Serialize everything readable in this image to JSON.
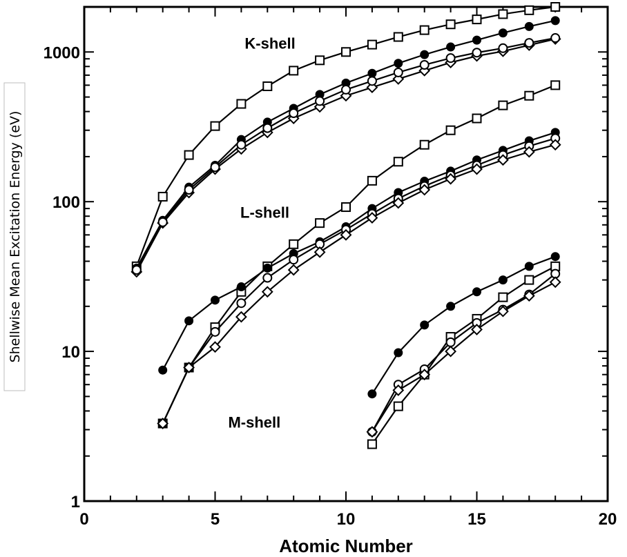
{
  "chart_data": {
    "type": "line",
    "title": "",
    "xlabel": "Atomic Number",
    "ylabel": "Shellwise Mean Excitation Energy (eV)",
    "xlim": [
      0,
      20
    ],
    "ylim": [
      1,
      2000
    ],
    "yscale": "log",
    "grid": false,
    "legend": "none",
    "x_ticks": [
      0,
      5,
      10,
      15,
      20
    ],
    "x_tick_labels": [
      "0",
      "5",
      "10",
      "15",
      "20"
    ],
    "y_ticks": [
      1,
      10,
      100,
      1000
    ],
    "y_tick_labels": [
      "1",
      "10",
      "100",
      "1000"
    ],
    "annotations": [
      {
        "text": "K-shell",
        "x": 7.1,
        "y": 1050
      },
      {
        "text": "L-shell",
        "x": 6.9,
        "y": 78
      },
      {
        "text": "M-shell",
        "x": 6.5,
        "y": 3.1
      }
    ],
    "series": [
      {
        "shell": "K",
        "marker": "square",
        "x": [
          2,
          3,
          4,
          5,
          6,
          7,
          8,
          9,
          10,
          11,
          12,
          13,
          14,
          15,
          16,
          17,
          18
        ],
        "y": [
          37,
          108,
          205,
          320,
          450,
          590,
          750,
          880,
          1000,
          1120,
          1260,
          1400,
          1530,
          1650,
          1790,
          1900,
          2000
        ]
      },
      {
        "shell": "K",
        "marker": "filled-circle",
        "x": [
          2,
          3,
          4,
          5,
          6,
          7,
          8,
          9,
          10,
          11,
          12,
          13,
          14,
          15,
          16,
          17,
          18
        ],
        "y": [
          36,
          75,
          125,
          175,
          260,
          340,
          420,
          520,
          620,
          720,
          840,
          960,
          1080,
          1200,
          1340,
          1480,
          1620
        ]
      },
      {
        "shell": "K",
        "marker": "diamond",
        "x": [
          2,
          3,
          4,
          5,
          6,
          7,
          8,
          9,
          10,
          11,
          12,
          13,
          14,
          15,
          16,
          17,
          18
        ],
        "y": [
          34,
          72,
          115,
          165,
          225,
          290,
          360,
          430,
          510,
          580,
          660,
          750,
          850,
          940,
          1010,
          1110,
          1220
        ]
      },
      {
        "shell": "K",
        "marker": "circle",
        "x": [
          2,
          3,
          4,
          5,
          6,
          7,
          8,
          9,
          10,
          11,
          12,
          13,
          14,
          15,
          16,
          17,
          18
        ],
        "y": [
          35,
          73,
          120,
          170,
          240,
          310,
          390,
          470,
          560,
          640,
          730,
          820,
          910,
          990,
          1060,
          1150,
          1240
        ]
      },
      {
        "shell": "L",
        "marker": "square",
        "x": [
          3,
          4,
          5,
          6,
          7,
          8,
          9,
          10,
          11,
          12,
          13,
          14,
          15,
          16,
          17,
          18
        ],
        "y": [
          3.3,
          7.8,
          14.5,
          25,
          37,
          52,
          72,
          92,
          138,
          185,
          240,
          300,
          360,
          440,
          510,
          600
        ]
      },
      {
        "shell": "L",
        "marker": "filled-circle",
        "x": [
          3,
          4,
          5,
          6,
          7,
          8,
          9,
          10,
          11,
          12,
          13,
          14,
          15,
          16,
          17,
          18
        ],
        "y": [
          7.5,
          16,
          22,
          27,
          36,
          45,
          54,
          68,
          90,
          115,
          137,
          160,
          190,
          220,
          255,
          290
        ]
      },
      {
        "shell": "L",
        "marker": "circle",
        "x": [
          3,
          4,
          5,
          6,
          7,
          8,
          9,
          10,
          11,
          12,
          13,
          14,
          15,
          16,
          17,
          18
        ],
        "y": [
          3.3,
          7.8,
          13.5,
          21,
          31,
          41,
          52,
          65,
          83,
          105,
          127,
          150,
          175,
          205,
          235,
          265
        ]
      },
      {
        "shell": "L",
        "marker": "diamond",
        "x": [
          3,
          4,
          5,
          6,
          7,
          8,
          9,
          10,
          11,
          12,
          13,
          14,
          15,
          16,
          17,
          18
        ],
        "y": [
          3.3,
          7.8,
          10.7,
          17,
          25,
          35,
          46,
          60,
          78,
          98,
          120,
          142,
          165,
          190,
          215,
          240
        ]
      },
      {
        "shell": "M",
        "marker": "filled-circle",
        "x": [
          11,
          12,
          13,
          14,
          15,
          16,
          17,
          18
        ],
        "y": [
          5.2,
          9.8,
          15,
          20,
          25,
          30,
          37,
          43
        ]
      },
      {
        "shell": "M",
        "marker": "square",
        "x": [
          11,
          12,
          13,
          14,
          15,
          16,
          17,
          18
        ],
        "y": [
          2.4,
          4.3,
          7.0,
          12.5,
          16.5,
          23,
          30,
          37
        ]
      },
      {
        "shell": "M",
        "marker": "circle",
        "x": [
          11,
          12,
          13,
          14,
          15,
          16,
          17,
          18
        ],
        "y": [
          2.9,
          6.0,
          7.6,
          11.5,
          15.5,
          19,
          24,
          33
        ]
      },
      {
        "shell": "M",
        "marker": "diamond",
        "x": [
          11,
          12,
          13,
          14,
          15,
          16,
          17,
          18
        ],
        "y": [
          2.9,
          5.5,
          7.0,
          10,
          14,
          18.5,
          23.5,
          29
        ]
      }
    ]
  }
}
